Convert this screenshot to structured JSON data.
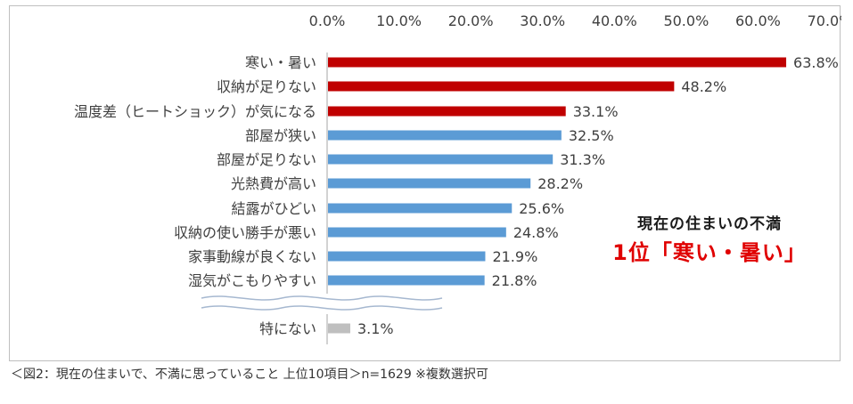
{
  "chart_data": {
    "type": "bar",
    "orientation": "horizontal",
    "categories": [
      "寒い・暑い",
      "収納が足りない",
      "温度差（ヒートショック）が気になる",
      "部屋が狭い",
      "部屋が足りない",
      "光熱費が高い",
      "結露がひどい",
      "収納の使い勝手が悪い",
      "家事動線が良くない",
      "湿気がこもりやすい",
      "特にない"
    ],
    "values": [
      63.8,
      48.2,
      33.1,
      32.5,
      31.3,
      28.2,
      25.6,
      24.8,
      21.9,
      21.8,
      3.1
    ],
    "value_labels": [
      "63.8%",
      "48.2%",
      "33.1%",
      "32.5%",
      "31.3%",
      "28.2%",
      "25.6%",
      "24.8%",
      "21.9%",
      "21.8%",
      "3.1%"
    ],
    "colors": [
      "#c00000",
      "#c00000",
      "#c00000",
      "#5b9bd5",
      "#5b9bd5",
      "#5b9bd5",
      "#5b9bd5",
      "#5b9bd5",
      "#5b9bd5",
      "#5b9bd5",
      "#bfbfbf"
    ],
    "xlim": [
      0,
      70
    ],
    "x_ticks": [
      "0.0%",
      "10.0%",
      "20.0%",
      "30.0%",
      "40.0%",
      "50.0%",
      "60.0%",
      "70.0%"
    ],
    "grid": false,
    "axis_break": "between 湿気がこもりやすい and 特にない"
  },
  "callout": {
    "line1": "現在の住まいの不満",
    "line2": "1位「寒い・暑い」"
  },
  "caption": "＜図2：現在の住まいで、不満に思っていること 上位10項目＞n=1629 ※複数選択可"
}
